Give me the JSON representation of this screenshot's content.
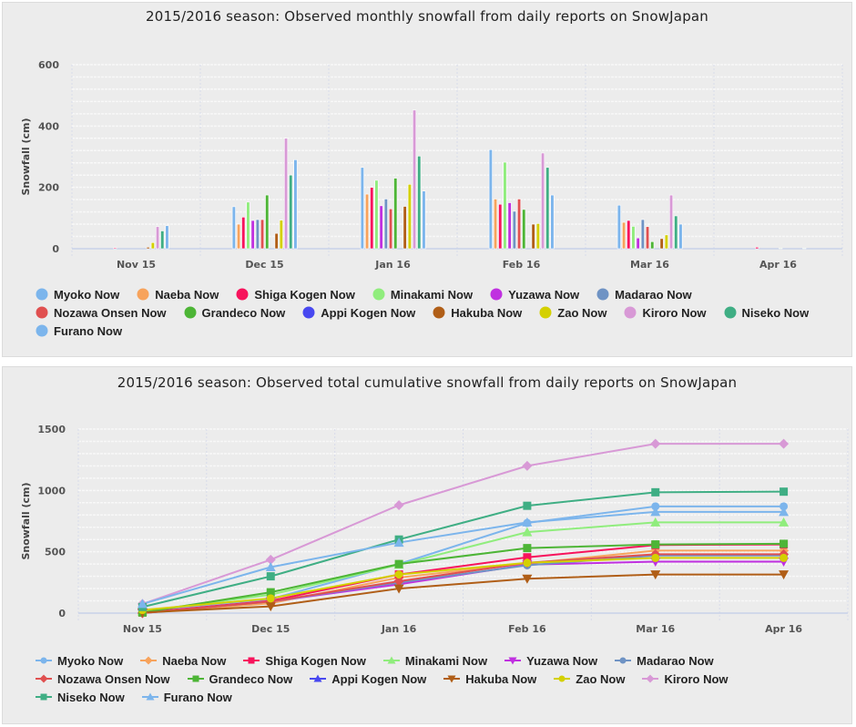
{
  "chart_data": [
    {
      "type": "bar",
      "title": "2015/2016 season: Observed monthly snowfall from daily reports on SnowJapan",
      "xlabel": "",
      "ylabel": "Snowfall (cm)",
      "ylim": [
        0,
        600
      ],
      "yticks": [
        "0",
        "200",
        "400",
        "600"
      ],
      "grid": true,
      "legend_position": "bottom",
      "categories": [
        "Nov 15",
        "Dec 15",
        "Jan 16",
        "Feb 16",
        "Mar 16",
        "Apr 16"
      ],
      "series": [
        {
          "name": "Myoko Now",
          "color": "#7cb5ec",
          "values": [
            0,
            137,
            265,
            323,
            142,
            0
          ]
        },
        {
          "name": "Naeba Now",
          "color": "#f7a35c",
          "values": [
            0,
            80,
            178,
            162,
            86,
            0
          ]
        },
        {
          "name": "Shiga Kogen Now",
          "color": "#f7135c",
          "values": [
            3,
            103,
            200,
            145,
            92,
            5
          ]
        },
        {
          "name": "Minakami Now",
          "color": "#90ed7d",
          "values": [
            0,
            152,
            223,
            282,
            73,
            0
          ]
        },
        {
          "name": "Yuzawa Now",
          "color": "#c030e0",
          "values": [
            0,
            92,
            140,
            150,
            35,
            0
          ]
        },
        {
          "name": "Madarao Now",
          "color": "#6f93c4",
          "values": [
            0,
            95,
            162,
            122,
            95,
            0
          ]
        },
        {
          "name": "Nozawa Onsen Now",
          "color": "#e05050",
          "values": [
            0,
            95,
            130,
            162,
            72,
            0
          ]
        },
        {
          "name": "Grandeco Now",
          "color": "#4db536",
          "values": [
            0,
            175,
            230,
            128,
            23,
            2
          ]
        },
        {
          "name": "Appi Kogen Now",
          "color": "#4848f0",
          "values": [
            0,
            0,
            0,
            0,
            0,
            0
          ]
        },
        {
          "name": "Hakuba Now",
          "color": "#b05e17",
          "values": [
            5,
            50,
            138,
            80,
            33,
            0
          ]
        },
        {
          "name": "Zao Now",
          "color": "#d4d000",
          "values": [
            20,
            93,
            210,
            82,
            45,
            0
          ]
        },
        {
          "name": "Kiroro Now",
          "color": "#d899d6",
          "values": [
            72,
            360,
            452,
            312,
            175,
            0
          ]
        },
        {
          "name": "Niseko Now",
          "color": "#3fae84",
          "values": [
            58,
            240,
            302,
            265,
            107,
            2
          ]
        },
        {
          "name": "Furano Now",
          "color": "#7cb5ec",
          "values": [
            75,
            290,
            188,
            175,
            80,
            0
          ]
        }
      ]
    },
    {
      "type": "line",
      "title": "2015/2016 season: Observed total cumulative snowfall from daily reports on SnowJapan",
      "xlabel": "",
      "ylabel": "Snowfall (cm)",
      "ylim": [
        0,
        1500
      ],
      "yticks": [
        "0",
        "500",
        "1000",
        "1500"
      ],
      "grid": true,
      "legend_position": "bottom",
      "categories": [
        "Nov 15",
        "Dec 15",
        "Jan 16",
        "Feb 16",
        "Mar 16",
        "Apr 16"
      ],
      "series": [
        {
          "name": "Myoko Now",
          "color": "#7cb5ec",
          "marker": "circle",
          "values": [
            20,
            115,
            400,
            735,
            870,
            870
          ]
        },
        {
          "name": "Naeba Now",
          "color": "#f7a35c",
          "marker": "diamond",
          "values": [
            0,
            80,
            290,
            405,
            510,
            510
          ]
        },
        {
          "name": "Shiga Kogen Now",
          "color": "#f7135c",
          "marker": "square",
          "values": [
            5,
            100,
            315,
            455,
            555,
            560
          ]
        },
        {
          "name": "Minakami Now",
          "color": "#90ed7d",
          "marker": "triangle",
          "values": [
            15,
            150,
            395,
            660,
            740,
            740
          ]
        },
        {
          "name": "Yuzawa Now",
          "color": "#c030e0",
          "marker": "triangle-down",
          "values": [
            0,
            95,
            235,
            395,
            420,
            420
          ]
        },
        {
          "name": "Madarao Now",
          "color": "#6f93c4",
          "marker": "circle",
          "values": [
            0,
            95,
            250,
            390,
            470,
            470
          ]
        },
        {
          "name": "Nozawa Onsen Now",
          "color": "#e05050",
          "marker": "diamond",
          "values": [
            0,
            95,
            260,
            410,
            480,
            480
          ]
        },
        {
          "name": "Grandeco Now",
          "color": "#4db536",
          "marker": "square",
          "values": [
            5,
            170,
            400,
            530,
            560,
            565
          ]
        },
        {
          "name": "Appi Kogen Now",
          "color": "#4848f0",
          "marker": "triangle",
          "values": []
        },
        {
          "name": "Hakuba Now",
          "color": "#b05e17",
          "marker": "triangle-down",
          "values": [
            5,
            55,
            200,
            280,
            315,
            315
          ]
        },
        {
          "name": "Zao Now",
          "color": "#d4d000",
          "marker": "circle",
          "values": [
            25,
            120,
            315,
            410,
            450,
            450
          ]
        },
        {
          "name": "Kiroro Now",
          "color": "#d899d6",
          "marker": "diamond",
          "values": [
            75,
            435,
            880,
            1200,
            1380,
            1380
          ]
        },
        {
          "name": "Niseko Now",
          "color": "#3fae84",
          "marker": "square",
          "values": [
            50,
            300,
            600,
            875,
            985,
            990
          ]
        },
        {
          "name": "Furano Now",
          "color": "#7cb5ec",
          "marker": "triangle",
          "values": [
            75,
            375,
            575,
            740,
            825,
            825
          ]
        }
      ]
    }
  ]
}
